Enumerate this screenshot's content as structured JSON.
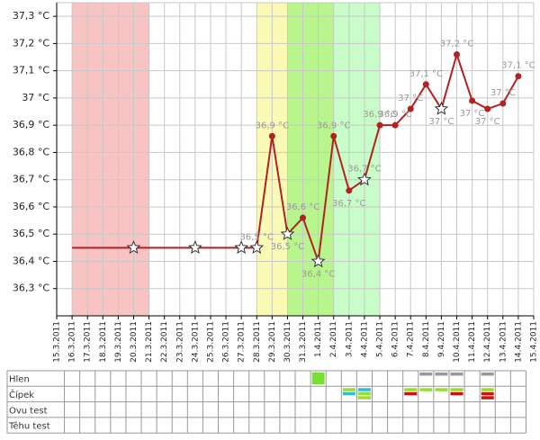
{
  "chart_data": {
    "type": "line",
    "categories": [
      "15.3.2011",
      "16.3.2011",
      "17.3.2011",
      "18.3.2011",
      "19.3.2011",
      "20.3.2011",
      "21.3.2011",
      "22.3.2011",
      "23.3.2011",
      "24.3.2011",
      "25.3.2011",
      "26.3.2011",
      "27.3.2011",
      "28.3.2011",
      "29.3.2011",
      "30.3.2011",
      "31.3.2011",
      "1.4.2011",
      "2.4.2011",
      "3.4.2011",
      "4.4.2011",
      "5.4.2011",
      "6.4.2011",
      "7.4.2011",
      "8.4.2011",
      "9.4.2011",
      "10.4.2011",
      "11.4.2011",
      "12.4.2011",
      "13.4.2011",
      "14.4.2011",
      "15.4.2011"
    ],
    "ylim": [
      36.2,
      37.35
    ],
    "yticks": [
      {
        "value": 36.3,
        "label": "36,3 °C"
      },
      {
        "value": 36.4,
        "label": "36,4 °C"
      },
      {
        "value": 36.5,
        "label": "36,5 °C"
      },
      {
        "value": 36.6,
        "label": "36,6 °C"
      },
      {
        "value": 36.7,
        "label": "36,7 °C"
      },
      {
        "value": 36.8,
        "label": "36,8 °C"
      },
      {
        "value": 36.9,
        "label": "36,9 °C"
      },
      {
        "value": 37.0,
        "label": "37 °C"
      },
      {
        "value": 37.1,
        "label": "37,1 °C"
      },
      {
        "value": 37.2,
        "label": "37,2 °C"
      },
      {
        "value": 37.3,
        "label": "37,3 °C"
      }
    ],
    "grid": true,
    "zones": [
      {
        "from": "16.3.2011",
        "to": "21.3.2011",
        "color": "#f8c3c3"
      },
      {
        "from": "28.3.2011",
        "to": "30.3.2011",
        "color": "#fafab4"
      },
      {
        "from": "30.3.2011",
        "to": "2.4.2011",
        "color": "#b8f58c"
      },
      {
        "from": "2.4.2011",
        "to": "5.4.2011",
        "color": "#c8fcc8"
      }
    ],
    "series": [
      {
        "color": "#b22222",
        "x": [
          "16.3.2011",
          "20.3.2011",
          "24.3.2011",
          "27.3.2011",
          "28.3.2011",
          "29.3.2011",
          "30.3.2011",
          "31.3.2011",
          "1.4.2011",
          "2.4.2011",
          "3.4.2011",
          "4.4.2011",
          "5.4.2011",
          "6.4.2011",
          "7.4.2011",
          "8.4.2011",
          "9.4.2011",
          "10.4.2011",
          "11.4.2011",
          "12.4.2011",
          "13.4.2011",
          "14.4.2011"
        ],
        "values": [
          36.45,
          36.45,
          36.45,
          36.45,
          36.45,
          36.86,
          36.5,
          36.56,
          36.4,
          36.86,
          36.66,
          36.7,
          36.9,
          36.9,
          36.96,
          37.05,
          36.96,
          37.16,
          36.99,
          36.96,
          36.98,
          37.08
        ],
        "markers": [
          "none",
          "star",
          "star",
          "star",
          "star",
          "dot",
          "star",
          "dot",
          "star",
          "dot",
          "dot",
          "star",
          "dot",
          "dot",
          "dot",
          "dot",
          "star",
          "dot",
          "dot",
          "dot",
          "dot",
          "dot"
        ],
        "value_labels": [
          null,
          null,
          null,
          null,
          "36,5 °C",
          "36,9 °C",
          "36,5 °C",
          "36,6 °C",
          "36,4 °C",
          "36,9 °C",
          "36,7 °C",
          "36,7 °C",
          "36,9 °C",
          "36,9 °C",
          "37 °C",
          "37,1 °C",
          "37 °C",
          "37,2 °C",
          "37 °C",
          "37 °C",
          "37 °C",
          "37,1 °C"
        ]
      }
    ],
    "table": {
      "rows": [
        {
          "label": "Hlen",
          "cells": [
            {
              "date": "1.4.2011",
              "shape": "square",
              "colors": [
                "#77e033"
              ]
            },
            {
              "date": "8.4.2011",
              "colors": [
                "#999999"
              ]
            },
            {
              "date": "9.4.2011",
              "colors": [
                "#999999"
              ]
            },
            {
              "date": "10.4.2011",
              "colors": [
                "#999999"
              ]
            },
            {
              "date": "12.4.2011",
              "colors": [
                "#999999"
              ]
            }
          ]
        },
        {
          "label": "Čípek",
          "cells": [
            {
              "date": "3.4.2011",
              "colors": [
                "#99dd33",
                "#33bbdd"
              ]
            },
            {
              "date": "4.4.2011",
              "colors": [
                "#33bbdd",
                "#99dd33",
                "#99dd33"
              ]
            },
            {
              "date": "7.4.2011",
              "colors": [
                "#99dd33",
                "#cc1111"
              ]
            },
            {
              "date": "8.4.2011",
              "colors": [
                "#99dd33"
              ]
            },
            {
              "date": "9.4.2011",
              "colors": [
                "#99dd33"
              ]
            },
            {
              "date": "10.4.2011",
              "colors": [
                "#99dd33",
                "#cc1111"
              ]
            },
            {
              "date": "12.4.2011",
              "colors": [
                "#99dd33",
                "#cc1111",
                "#cc1111"
              ]
            }
          ]
        },
        {
          "label": "Ovu test",
          "cells": []
        },
        {
          "label": "Těhu test",
          "cells": []
        }
      ]
    }
  }
}
